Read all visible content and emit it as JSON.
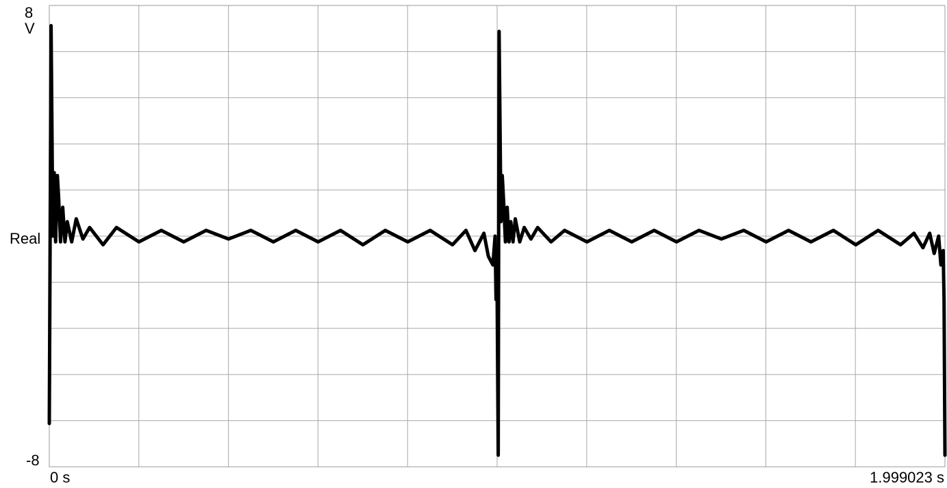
{
  "chart_data": {
    "type": "line",
    "title": "",
    "xlabel": "",
    "ylabel": "",
    "y_unit": "V",
    "trace_label": "Real",
    "x_tick_labels": {
      "start": "0 s",
      "end": "1.999023 s"
    },
    "y_tick_labels": {
      "top": "8",
      "bottom": "-8"
    },
    "xlim": [
      0,
      1.999023
    ],
    "ylim": [
      -8,
      8
    ],
    "grid": true,
    "grid_divisions": {
      "x": 10,
      "y": 10
    },
    "line_color": "#000000",
    "series": [
      {
        "x": [
          0.0,
          0.004,
          0.008,
          0.011,
          0.014,
          0.018,
          0.021,
          0.025,
          0.03,
          0.035,
          0.04,
          0.05,
          0.06,
          0.075,
          0.09,
          0.12,
          0.15,
          0.2,
          0.25,
          0.3,
          0.35,
          0.4,
          0.45,
          0.5,
          0.55,
          0.6,
          0.65,
          0.7,
          0.75,
          0.8,
          0.85,
          0.9,
          0.93,
          0.95,
          0.97,
          0.98,
          0.99,
          0.995,
          0.997,
          0.999,
          1.0,
          1.002,
          1.004,
          1.008,
          1.011,
          1.014,
          1.018,
          1.022,
          1.026,
          1.03,
          1.035,
          1.04,
          1.05,
          1.06,
          1.075,
          1.09,
          1.12,
          1.15,
          1.2,
          1.25,
          1.3,
          1.35,
          1.4,
          1.45,
          1.5,
          1.55,
          1.6,
          1.65,
          1.7,
          1.75,
          1.8,
          1.85,
          1.9,
          1.93,
          1.95,
          1.965,
          1.975,
          1.985,
          1.99,
          1.995,
          1.997,
          1.999023
        ],
        "y": [
          -6.5,
          7.3,
          0.0,
          2.2,
          -0.2,
          2.1,
          1.3,
          -0.2,
          1.0,
          -0.2,
          0.5,
          -0.2,
          0.6,
          -0.1,
          0.3,
          -0.3,
          0.3,
          -0.2,
          0.2,
          -0.2,
          0.2,
          -0.1,
          0.2,
          -0.2,
          0.2,
          -0.2,
          0.2,
          -0.3,
          0.2,
          -0.2,
          0.2,
          -0.3,
          0.2,
          -0.5,
          0.1,
          -0.7,
          -1.0,
          0.0,
          -2.2,
          -1.0,
          -3.0,
          -7.6,
          7.1,
          0.5,
          2.1,
          1.2,
          -0.2,
          1.0,
          -0.2,
          0.5,
          -0.2,
          0.6,
          -0.2,
          0.3,
          -0.1,
          0.3,
          -0.2,
          0.2,
          -0.2,
          0.2,
          -0.2,
          0.2,
          -0.2,
          0.2,
          -0.1,
          0.2,
          -0.2,
          0.2,
          -0.2,
          0.2,
          -0.3,
          0.2,
          -0.3,
          0.1,
          -0.4,
          0.1,
          -0.6,
          0.0,
          -1.0,
          -0.5,
          -2.2,
          -7.6
        ]
      }
    ]
  }
}
